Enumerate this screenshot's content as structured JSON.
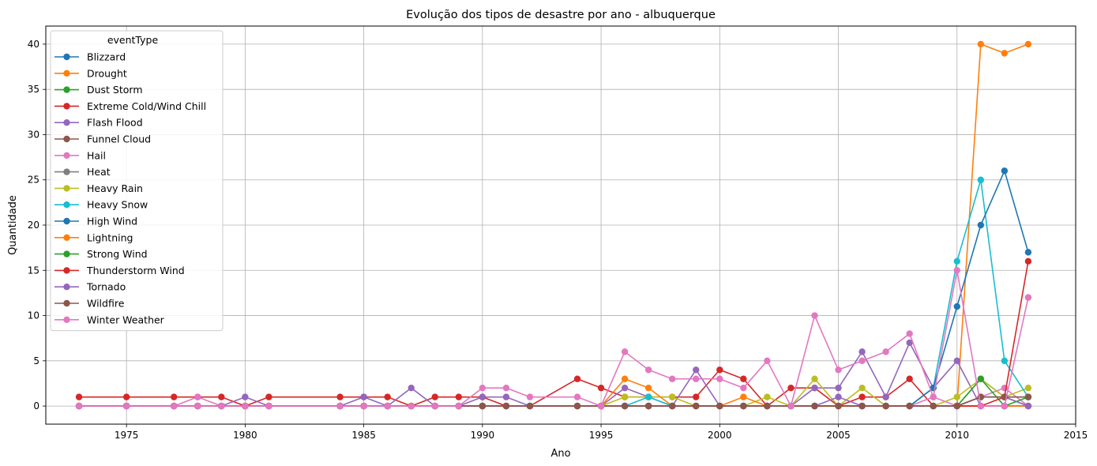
{
  "chart_data": {
    "type": "line",
    "title": "Evolução dos tipos de desastre por ano - albuquerque",
    "xlabel": "Ano",
    "ylabel": "Quantidade",
    "xlim": [
      1971.6,
      2015
    ],
    "ylim": [
      -2,
      42
    ],
    "xticks": [
      1975,
      1980,
      1985,
      1990,
      1995,
      2000,
      2005,
      2010,
      2015
    ],
    "yticks": [
      0,
      5,
      10,
      15,
      20,
      25,
      30,
      35,
      40
    ],
    "grid": true,
    "legend": {
      "title": "eventType",
      "position": "top-left"
    },
    "x": [
      1973,
      1975,
      1977,
      1978,
      1979,
      1980,
      1981,
      1984,
      1985,
      1986,
      1987,
      1988,
      1989,
      1990,
      1991,
      1992,
      1994,
      1995,
      1996,
      1997,
      1998,
      1999,
      2000,
      2001,
      2002,
      2003,
      2004,
      2005,
      2006,
      2007,
      2008,
      2009,
      2010,
      2011,
      2012,
      2013
    ],
    "series": [
      {
        "name": "Blizzard",
        "color": "#1f77b4",
        "values": [
          0,
          0,
          0,
          0,
          0,
          0,
          0,
          0,
          0,
          0,
          0,
          0,
          0,
          0,
          0,
          0,
          0,
          0,
          0,
          0,
          0,
          0,
          0,
          0,
          0,
          0,
          0,
          0,
          0,
          0,
          0,
          0,
          0,
          0,
          0,
          0
        ]
      },
      {
        "name": "Drought",
        "color": "#ff7f0e",
        "values": [
          0,
          0,
          0,
          0,
          0,
          0,
          0,
          0,
          0,
          0,
          0,
          0,
          0,
          0,
          0,
          0,
          0,
          0,
          0,
          0,
          0,
          0,
          0,
          0,
          0,
          0,
          0,
          0,
          0,
          0,
          0,
          0,
          0,
          40,
          39,
          40
        ]
      },
      {
        "name": "Dust Storm",
        "color": "#2ca02c",
        "values": [
          0,
          0,
          0,
          0,
          0,
          0,
          0,
          0,
          0,
          0,
          0,
          0,
          0,
          0,
          0,
          0,
          0,
          0,
          0,
          0,
          0,
          0,
          0,
          0,
          0,
          0,
          0,
          0,
          0,
          0,
          0,
          0,
          0,
          3,
          1,
          1
        ]
      },
      {
        "name": "Extreme Cold/Wind Chill",
        "color": "#d62728",
        "values": [
          1,
          1,
          1,
          1,
          1,
          0,
          1,
          1,
          1,
          1,
          0,
          1,
          1,
          1,
          0,
          0,
          3,
          2,
          1,
          1,
          1,
          1,
          4,
          3,
          0,
          2,
          2,
          0,
          1,
          1,
          3,
          0,
          0,
          0,
          0,
          0
        ]
      },
      {
        "name": "Flash Flood",
        "color": "#9467bd",
        "values": [
          0,
          0,
          0,
          0,
          0,
          1,
          0,
          0,
          1,
          0,
          2,
          0,
          0,
          1,
          1,
          0,
          0,
          0,
          2,
          1,
          0,
          4,
          0,
          0,
          0,
          0,
          2,
          2,
          6,
          1,
          7,
          2,
          5,
          0,
          0,
          0
        ]
      },
      {
        "name": "Funnel Cloud",
        "color": "#8c564b",
        "values": [
          0,
          0,
          0,
          0,
          0,
          0,
          0,
          0,
          0,
          0,
          0,
          0,
          0,
          0,
          0,
          0,
          0,
          0,
          0,
          0,
          0,
          0,
          0,
          0,
          0,
          0,
          0,
          0,
          0,
          0,
          0,
          0,
          0,
          1,
          1,
          0
        ]
      },
      {
        "name": "Hail",
        "color": "#e377c2",
        "values": [
          0,
          0,
          0,
          1,
          0,
          0,
          0,
          0,
          0,
          0,
          0,
          0,
          0,
          0,
          0,
          0,
          0,
          0,
          0,
          0,
          0,
          0,
          0,
          0,
          0,
          0,
          0,
          0,
          0,
          0,
          0,
          1,
          0,
          1,
          2,
          0
        ]
      },
      {
        "name": "Heat",
        "color": "#7f7f7f",
        "values": [
          0,
          0,
          0,
          0,
          0,
          0,
          0,
          0,
          0,
          0,
          0,
          0,
          0,
          0,
          0,
          0,
          0,
          0,
          0,
          0,
          0,
          0,
          0,
          0,
          0,
          0,
          0,
          0,
          0,
          0,
          0,
          0,
          0,
          0,
          0,
          0
        ]
      },
      {
        "name": "Heavy Rain",
        "color": "#bcbd22",
        "values": [
          0,
          0,
          0,
          0,
          0,
          0,
          0,
          0,
          0,
          0,
          0,
          0,
          0,
          0,
          0,
          0,
          0,
          0,
          1,
          1,
          1,
          0,
          0,
          0,
          1,
          0,
          3,
          0,
          2,
          0,
          0,
          0,
          1,
          3,
          1,
          2
        ]
      },
      {
        "name": "Heavy Snow",
        "color": "#17becf",
        "values": [
          0,
          0,
          0,
          0,
          0,
          0,
          0,
          0,
          0,
          0,
          0,
          0,
          0,
          0,
          0,
          0,
          0,
          0,
          0,
          1,
          0,
          0,
          0,
          0,
          0,
          0,
          0,
          0,
          0,
          0,
          0,
          2,
          16,
          25,
          5,
          1
        ]
      },
      {
        "name": "High Wind",
        "color": "#1f77b4",
        "values": [
          0,
          0,
          0,
          0,
          0,
          0,
          0,
          0,
          0,
          0,
          0,
          0,
          0,
          0,
          0,
          0,
          0,
          0,
          0,
          0,
          0,
          0,
          0,
          0,
          0,
          0,
          0,
          0,
          0,
          0,
          0,
          2,
          11,
          20,
          26,
          17
        ]
      },
      {
        "name": "Lightning",
        "color": "#ff7f0e",
        "values": [
          0,
          0,
          0,
          0,
          0,
          0,
          0,
          0,
          0,
          0,
          0,
          0,
          0,
          0,
          0,
          0,
          0,
          0,
          3,
          2,
          0,
          0,
          0,
          1,
          0,
          0,
          0,
          0,
          0,
          0,
          0,
          0,
          0,
          0,
          0,
          0
        ]
      },
      {
        "name": "Strong Wind",
        "color": "#2ca02c",
        "values": [
          0,
          0,
          0,
          0,
          0,
          0,
          0,
          0,
          0,
          0,
          0,
          0,
          0,
          0,
          0,
          0,
          0,
          0,
          0,
          0,
          0,
          0,
          0,
          0,
          0,
          0,
          0,
          0,
          0,
          0,
          0,
          0,
          0,
          3,
          0,
          1
        ]
      },
      {
        "name": "Thunderstorm Wind",
        "color": "#d62728",
        "values": [
          0,
          0,
          0,
          0,
          0,
          0,
          0,
          0,
          0,
          0,
          0,
          0,
          0,
          0,
          0,
          0,
          0,
          0,
          0,
          0,
          0,
          0,
          0,
          0,
          0,
          0,
          0,
          0,
          0,
          0,
          0,
          0,
          0,
          0,
          1,
          16
        ]
      },
      {
        "name": "Tornado",
        "color": "#9467bd",
        "values": [
          0,
          0,
          0,
          0,
          0,
          0,
          0,
          0,
          0,
          0,
          0,
          0,
          0,
          0,
          0,
          0,
          0,
          0,
          0,
          0,
          0,
          0,
          0,
          0,
          0,
          0,
          0,
          1,
          0,
          0,
          0,
          0,
          0,
          1,
          1,
          0
        ]
      },
      {
        "name": "Wildfire",
        "color": "#8c564b",
        "values": [
          0,
          0,
          0,
          0,
          0,
          0,
          0,
          0,
          0,
          0,
          0,
          0,
          0,
          0,
          0,
          0,
          0,
          0,
          0,
          0,
          0,
          0,
          0,
          0,
          0,
          0,
          0,
          0,
          0,
          0,
          0,
          0,
          0,
          1,
          1,
          1
        ]
      },
      {
        "name": "Winter Weather",
        "color": "#e377c2",
        "values": [
          0,
          0,
          0,
          0,
          0,
          0,
          0,
          0,
          0,
          0,
          0,
          0,
          0,
          2,
          2,
          1,
          1,
          0,
          6,
          4,
          3,
          3,
          3,
          2,
          5,
          0,
          10,
          4,
          5,
          6,
          8,
          1,
          15,
          0,
          0,
          12
        ]
      }
    ]
  }
}
